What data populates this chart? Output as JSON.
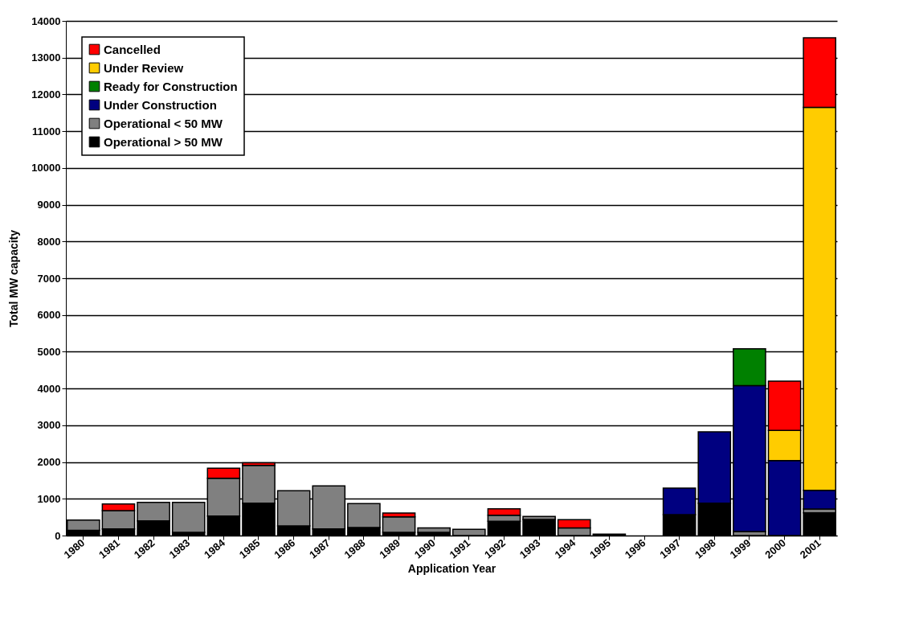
{
  "chart_data": {
    "type": "bar",
    "stacked": true,
    "xlabel": "Application Year",
    "ylabel": "Total MW capacity",
    "categories": [
      "1980",
      "1981",
      "1982",
      "1983",
      "1984",
      "1985",
      "1986",
      "1987",
      "1988",
      "1989",
      "1990",
      "1991",
      "1992",
      "1993",
      "1994",
      "1995",
      "1996",
      "1997",
      "1998",
      "1999",
      "2000",
      "2001"
    ],
    "series": [
      {
        "name": "Operational > 50 MW",
        "color": "#000000",
        "values": [
          140,
          180,
          400,
          90,
          530,
          880,
          260,
          180,
          220,
          90,
          90,
          0,
          390,
          440,
          0,
          40,
          0,
          570,
          880,
          0,
          0,
          620
        ]
      },
      {
        "name": "Operational < 50 MW",
        "color": "#808080",
        "values": [
          280,
          500,
          500,
          810,
          1030,
          1030,
          960,
          1170,
          650,
          420,
          120,
          170,
          160,
          80,
          210,
          0,
          0,
          0,
          0,
          110,
          0,
          100
        ]
      },
      {
        "name": "Under Construction",
        "color": "#000080",
        "values": [
          0,
          0,
          0,
          0,
          0,
          0,
          0,
          0,
          0,
          0,
          0,
          0,
          0,
          0,
          0,
          0,
          0,
          720,
          1940,
          3970,
          2040,
          510
        ]
      },
      {
        "name": "Ready for Construction",
        "color": "#008000",
        "values": [
          0,
          0,
          0,
          0,
          0,
          0,
          0,
          0,
          0,
          0,
          0,
          0,
          0,
          0,
          0,
          0,
          0,
          0,
          0,
          1000,
          0,
          0
        ]
      },
      {
        "name": "Under Review",
        "color": "#ffcc00",
        "values": [
          0,
          0,
          0,
          0,
          0,
          0,
          0,
          0,
          0,
          0,
          0,
          0,
          0,
          0,
          0,
          0,
          0,
          0,
          0,
          0,
          820,
          10420
        ]
      },
      {
        "name": "Cancelled",
        "color": "#ff0000",
        "values": [
          0,
          180,
          0,
          0,
          270,
          70,
          0,
          0,
          0,
          100,
          0,
          0,
          180,
          0,
          220,
          0,
          0,
          0,
          0,
          0,
          1340,
          1890
        ]
      }
    ],
    "ylim": [
      0,
      14000
    ],
    "yticks": [
      0,
      1000,
      2000,
      3000,
      4000,
      5000,
      6000,
      7000,
      8000,
      9000,
      10000,
      11000,
      12000,
      13000,
      14000
    ],
    "grid": "y",
    "legend": "top left"
  }
}
